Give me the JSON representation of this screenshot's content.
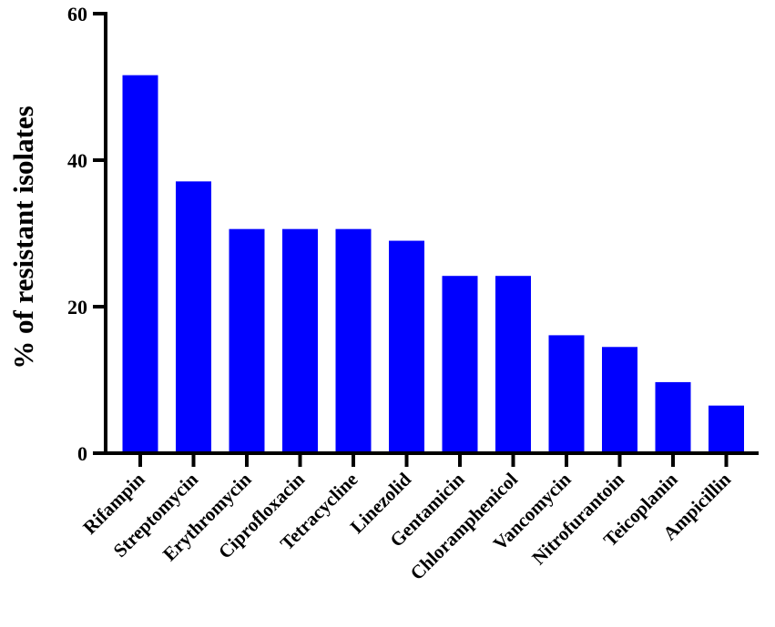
{
  "chart_data": {
    "type": "bar",
    "title": "",
    "xlabel": "",
    "ylabel": "% of resistant isolates",
    "ylim": [
      0,
      60
    ],
    "yticks": [
      0,
      20,
      40,
      60
    ],
    "grid": false,
    "legend": "none",
    "bar_color": "#0000ff",
    "categories": [
      "Rifampin",
      "Streptomycin",
      "Erythromycin",
      "Ciprofloxacin",
      "Tetracycline",
      "Linezolid",
      "Gentamicin",
      "Chloramphenicol",
      "Vancomycin",
      "Nitrofurantoin",
      "Teicoplanin",
      "Ampicillin"
    ],
    "values": [
      51.6,
      37.1,
      30.6,
      30.6,
      30.6,
      29.0,
      24.2,
      24.2,
      16.1,
      14.5,
      9.7,
      6.5
    ]
  }
}
